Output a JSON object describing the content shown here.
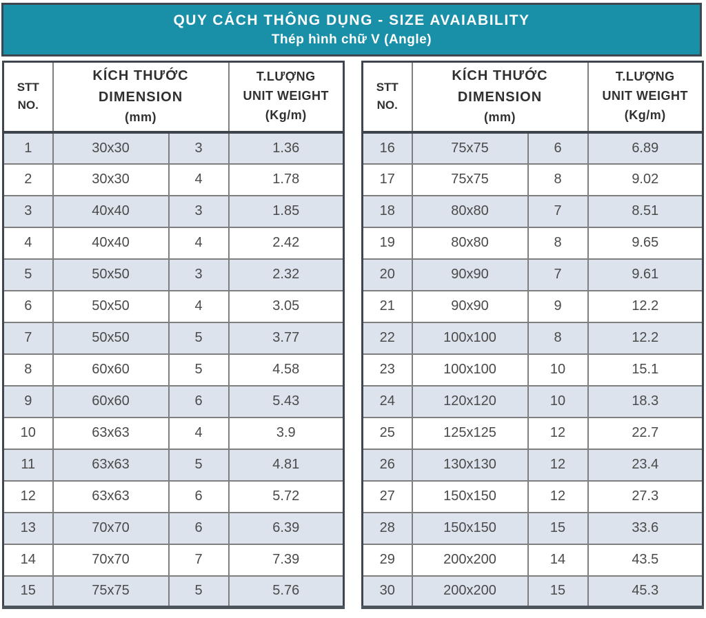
{
  "title": {
    "line1": "QUY CÁCH THÔNG DỤNG - SIZE AVAIABILITY",
    "line2": "Thép hình chữ V (Angle)"
  },
  "header": {
    "stt_line1": "STT",
    "stt_line2": "NO.",
    "dim_line1": "KÍCH THƯỚC",
    "dim_line2": "DIMENSION",
    "dim_line3": "(mm)",
    "weight_line1": "T.LƯỢNG",
    "weight_line2": "UNIT WEIGHT",
    "weight_line3": "(Kg/m)"
  },
  "colors": {
    "header_bg": "#1a90a8",
    "row_shaded": "#dde3ed",
    "row_white": "#ffffff",
    "grid_gray": "#7e7e7e",
    "border_dark": "#3f4650"
  },
  "left_table": {
    "rows": [
      [
        "1",
        "30x30",
        "3",
        "1.36"
      ],
      [
        "2",
        "30x30",
        "4",
        "1.78"
      ],
      [
        "3",
        "40x40",
        "3",
        "1.85"
      ],
      [
        "4",
        "40x40",
        "4",
        "2.42"
      ],
      [
        "5",
        "50x50",
        "3",
        "2.32"
      ],
      [
        "6",
        "50x50",
        "4",
        "3.05"
      ],
      [
        "7",
        "50x50",
        "5",
        "3.77"
      ],
      [
        "8",
        "60x60",
        "5",
        "4.58"
      ],
      [
        "9",
        "60x60",
        "6",
        "5.43"
      ],
      [
        "10",
        "63x63",
        "4",
        "3.9"
      ],
      [
        "11",
        "63x63",
        "5",
        "4.81"
      ],
      [
        "12",
        "63x63",
        "6",
        "5.72"
      ],
      [
        "13",
        "70x70",
        "6",
        "6.39"
      ],
      [
        "14",
        "70x70",
        "7",
        "7.39"
      ],
      [
        "15",
        "75x75",
        "5",
        "5.76"
      ]
    ]
  },
  "right_table": {
    "rows": [
      [
        "16",
        "75x75",
        "6",
        "6.89"
      ],
      [
        "17",
        "75x75",
        "8",
        "9.02"
      ],
      [
        "18",
        "80x80",
        "7",
        "8.51"
      ],
      [
        "19",
        "80x80",
        "8",
        "9.65"
      ],
      [
        "20",
        "90x90",
        "7",
        "9.61"
      ],
      [
        "21",
        "90x90",
        "9",
        "12.2"
      ],
      [
        "22",
        "100x100",
        "8",
        "12.2"
      ],
      [
        "23",
        "100x100",
        "10",
        "15.1"
      ],
      [
        "24",
        "120x120",
        "10",
        "18.3"
      ],
      [
        "25",
        "125x125",
        "12",
        "22.7"
      ],
      [
        "26",
        "130x130",
        "12",
        "23.4"
      ],
      [
        "27",
        "150x150",
        "12",
        "27.3"
      ],
      [
        "28",
        "150x150",
        "15",
        "33.6"
      ],
      [
        "29",
        "200x200",
        "14",
        "43.5"
      ],
      [
        "30",
        "200x200",
        "15",
        "45.3"
      ]
    ]
  }
}
